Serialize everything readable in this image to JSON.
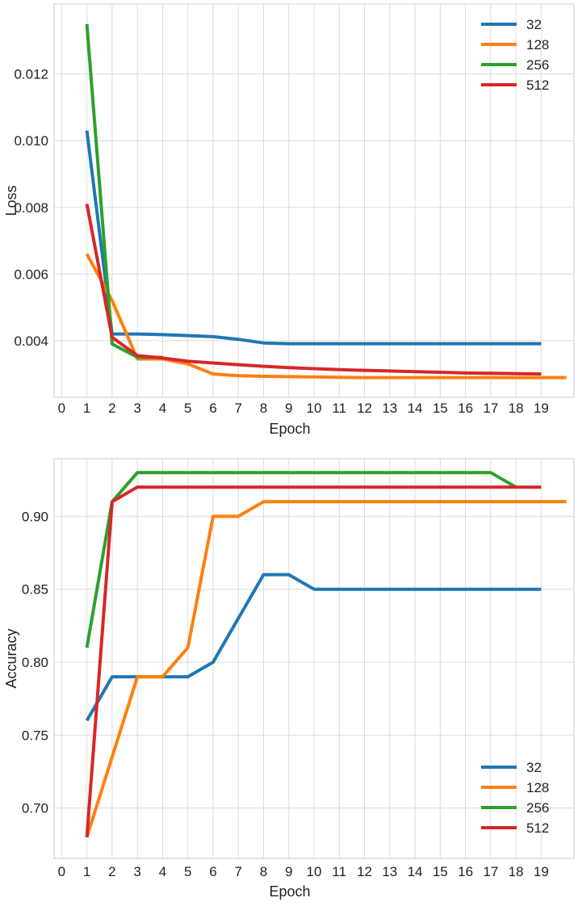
{
  "chart_data": [
    {
      "type": "line",
      "title": "",
      "xlabel": "Epoch",
      "ylabel": "Loss",
      "x_ticks": [
        0,
        1,
        2,
        3,
        4,
        5,
        6,
        7,
        8,
        9,
        10,
        11,
        12,
        13,
        14,
        15,
        16,
        17,
        18,
        19
      ],
      "y_ticks": [
        "0.004",
        "0.006",
        "0.008",
        "0.010",
        "0.012"
      ],
      "xlim": [
        -0.3,
        20.3
      ],
      "ylim": [
        0.0023,
        0.0141
      ],
      "grid": true,
      "legend": "top-right",
      "series": [
        {
          "name": "32",
          "color": "#1f77b4",
          "x": [
            1,
            2,
            3,
            4,
            5,
            6,
            7,
            8,
            9,
            10,
            11,
            12,
            13,
            14,
            15,
            16,
            17,
            18,
            19
          ],
          "y": [
            0.0103,
            0.0042,
            0.0042,
            0.00418,
            0.00415,
            0.00412,
            0.00404,
            0.00393,
            0.00391,
            0.00391,
            0.00391,
            0.00391,
            0.00391,
            0.00391,
            0.00391,
            0.00391,
            0.00391,
            0.00391,
            0.00391
          ]
        },
        {
          "name": "128",
          "color": "#ff7f0e",
          "x": [
            1,
            2,
            3,
            4,
            5,
            6,
            7,
            8,
            9,
            10,
            11,
            12,
            13,
            14,
            15,
            16,
            17,
            18,
            19,
            20
          ],
          "y": [
            0.0066,
            0.0052,
            0.00345,
            0.00345,
            0.0033,
            0.003,
            0.00295,
            0.00293,
            0.00292,
            0.00291,
            0.0029,
            0.00289,
            0.00289,
            0.00289,
            0.00289,
            0.00289,
            0.00289,
            0.00289,
            0.00289,
            0.00289
          ]
        },
        {
          "name": "256",
          "color": "#2ca02c",
          "x": [
            1,
            2,
            3,
            4
          ],
          "y": [
            0.0135,
            0.0039,
            0.0035,
            0.0035
          ]
        },
        {
          "name": "512",
          "color": "#d62728",
          "x": [
            1,
            2,
            3,
            4,
            5,
            6,
            7,
            8,
            9,
            10,
            11,
            12,
            13,
            14,
            15,
            16,
            17,
            18,
            19
          ],
          "y": [
            0.0081,
            0.0041,
            0.00355,
            0.00348,
            0.00338,
            0.00333,
            0.00328,
            0.00323,
            0.00319,
            0.00316,
            0.00313,
            0.00311,
            0.00309,
            0.00307,
            0.00305,
            0.00303,
            0.00302,
            0.00301,
            0.003
          ]
        }
      ]
    },
    {
      "type": "line",
      "title": "",
      "xlabel": "Epoch",
      "ylabel": "Accuracy",
      "x_ticks": [
        0,
        1,
        2,
        3,
        4,
        5,
        6,
        7,
        8,
        9,
        10,
        11,
        12,
        13,
        14,
        15,
        16,
        17,
        18,
        19
      ],
      "y_ticks": [
        "0.70",
        "0.75",
        "0.80",
        "0.85",
        "0.90"
      ],
      "xlim": [
        -0.3,
        20.3
      ],
      "ylim": [
        0.6655,
        0.9395
      ],
      "grid": true,
      "legend": "bottom-right",
      "series": [
        {
          "name": "32",
          "color": "#1f77b4",
          "x": [
            1,
            2,
            3,
            4,
            5,
            6,
            7,
            8,
            9,
            10,
            11,
            12,
            13,
            14,
            15,
            16,
            17,
            18,
            19
          ],
          "y": [
            0.76,
            0.79,
            0.79,
            0.79,
            0.79,
            0.8,
            0.83,
            0.86,
            0.86,
            0.85,
            0.85,
            0.85,
            0.85,
            0.85,
            0.85,
            0.85,
            0.85,
            0.85,
            0.85
          ]
        },
        {
          "name": "128",
          "color": "#ff7f0e",
          "x": [
            1,
            2,
            3,
            4,
            5,
            6,
            7,
            8,
            9,
            10,
            11,
            12,
            13,
            14,
            15,
            16,
            17,
            18,
            19,
            20
          ],
          "y": [
            0.68,
            0.735,
            0.79,
            0.79,
            0.81,
            0.9,
            0.9,
            0.91,
            0.91,
            0.91,
            0.91,
            0.91,
            0.91,
            0.91,
            0.91,
            0.91,
            0.91,
            0.91,
            0.91,
            0.91
          ]
        },
        {
          "name": "256",
          "color": "#2ca02c",
          "x": [
            1,
            2,
            3,
            4,
            5,
            6,
            7,
            8,
            9,
            10,
            11,
            12,
            13,
            14,
            15,
            16,
            17,
            18
          ],
          "y": [
            0.81,
            0.91,
            0.93,
            0.93,
            0.93,
            0.93,
            0.93,
            0.93,
            0.93,
            0.93,
            0.93,
            0.93,
            0.93,
            0.93,
            0.93,
            0.93,
            0.93,
            0.92
          ]
        },
        {
          "name": "512",
          "color": "#d62728",
          "x": [
            1,
            2,
            3,
            4,
            5,
            6,
            7,
            8,
            9,
            10,
            11,
            12,
            13,
            14,
            15,
            16,
            17,
            18,
            19
          ],
          "y": [
            0.68,
            0.91,
            0.92,
            0.92,
            0.92,
            0.92,
            0.92,
            0.92,
            0.92,
            0.92,
            0.92,
            0.92,
            0.92,
            0.92,
            0.92,
            0.92,
            0.92,
            0.92,
            0.92
          ]
        }
      ]
    }
  ]
}
